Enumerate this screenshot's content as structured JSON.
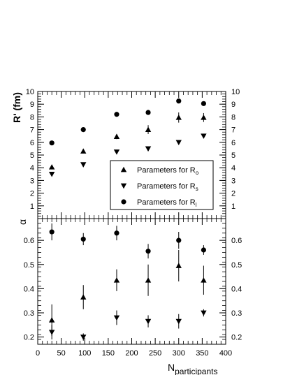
{
  "chart_data": [
    {
      "type": "scatter",
      "ylabel": "R' (fm)",
      "xlim": [
        0,
        400
      ],
      "ylim": [
        0,
        10
      ],
      "y_ticks": [
        "1",
        "2",
        "3",
        "4",
        "5",
        "6",
        "7",
        "8",
        "9",
        "10"
      ],
      "legend_position": "lower-right",
      "series": [
        {
          "name": "Parameters for R",
          "subscript": "o",
          "marker": "triangle-up",
          "points": [
            {
              "x": 30,
              "y": 4.05,
              "err": 0.15
            },
            {
              "x": 97,
              "y": 5.3,
              "err": 0.15
            },
            {
              "x": 168,
              "y": 6.45,
              "err": 0.2
            },
            {
              "x": 235,
              "y": 7.0,
              "err": 0.35
            },
            {
              "x": 300,
              "y": 7.95,
              "err": 0.4
            },
            {
              "x": 353,
              "y": 7.95,
              "err": 0.35
            }
          ]
        },
        {
          "name": "Parameters for R",
          "subscript": "s",
          "marker": "triangle-down",
          "points": [
            {
              "x": 30,
              "y": 3.5,
              "err": 0.1
            },
            {
              "x": 97,
              "y": 4.25,
              "err": 0.1
            },
            {
              "x": 168,
              "y": 5.25,
              "err": 0.15
            },
            {
              "x": 235,
              "y": 5.5,
              "err": 0.15
            },
            {
              "x": 300,
              "y": 6.0,
              "err": 0.15
            },
            {
              "x": 353,
              "y": 6.5,
              "err": 0.15
            }
          ]
        },
        {
          "name": "Parameters for R",
          "subscript": "l",
          "marker": "circle",
          "points": [
            {
              "x": 30,
              "y": 5.95,
              "err": 0.1
            },
            {
              "x": 97,
              "y": 7.0,
              "err": 0.1
            },
            {
              "x": 168,
              "y": 8.2,
              "err": 0.15
            },
            {
              "x": 235,
              "y": 8.35,
              "err": 0.15
            },
            {
              "x": 300,
              "y": 9.25,
              "err": 0.15
            },
            {
              "x": 353,
              "y": 9.05,
              "err": 0.15
            }
          ]
        }
      ]
    },
    {
      "type": "scatter",
      "ylabel": "α",
      "xlabel": "N",
      "xlabel_subscript": "participants",
      "xlim": [
        0,
        400
      ],
      "ylim": [
        0.17,
        0.69
      ],
      "x_ticks": [
        "0",
        "50",
        "100",
        "150",
        "200",
        "250",
        "300",
        "350",
        "400"
      ],
      "y_ticks": [
        "0.2",
        "0.3",
        "0.4",
        "0.5",
        "0.6"
      ],
      "series": [
        {
          "marker": "triangle-up",
          "points": [
            {
              "x": 30,
              "y": 0.27,
              "err": 0.065
            },
            {
              "x": 97,
              "y": 0.365,
              "err": 0.05
            },
            {
              "x": 168,
              "y": 0.435,
              "err": 0.045
            },
            {
              "x": 235,
              "y": 0.435,
              "err": 0.065
            },
            {
              "x": 300,
              "y": 0.495,
              "err": 0.065
            },
            {
              "x": 353,
              "y": 0.435,
              "err": 0.06
            }
          ]
        },
        {
          "marker": "triangle-down",
          "points": [
            {
              "x": 30,
              "y": 0.22,
              "err": 0.03
            },
            {
              "x": 97,
              "y": 0.2,
              "err": 0.015
            },
            {
              "x": 168,
              "y": 0.28,
              "err": 0.03
            },
            {
              "x": 235,
              "y": 0.265,
              "err": 0.025
            },
            {
              "x": 300,
              "y": 0.265,
              "err": 0.03
            },
            {
              "x": 353,
              "y": 0.3,
              "err": 0.015
            }
          ]
        },
        {
          "marker": "circle",
          "points": [
            {
              "x": 30,
              "y": 0.635,
              "err": 0.035
            },
            {
              "x": 97,
              "y": 0.605,
              "err": 0.025
            },
            {
              "x": 168,
              "y": 0.63,
              "err": 0.03
            },
            {
              "x": 235,
              "y": 0.555,
              "err": 0.03
            },
            {
              "x": 300,
              "y": 0.6,
              "err": 0.035
            },
            {
              "x": 353,
              "y": 0.56,
              "err": 0.02
            }
          ]
        }
      ]
    }
  ]
}
